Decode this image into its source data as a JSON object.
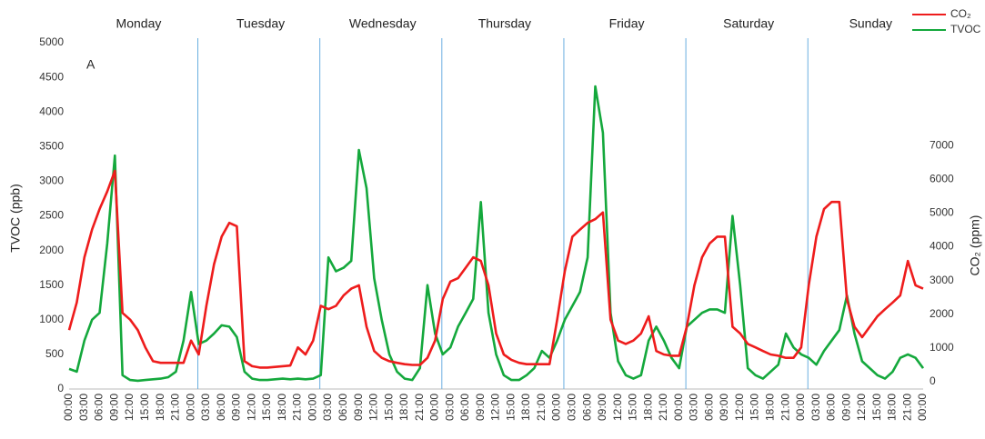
{
  "chart_data": {
    "type": "line",
    "annotation": "A",
    "days": [
      "Monday",
      "Tuesday",
      "Wednesday",
      "Thursday",
      "Friday",
      "Saturday",
      "Sunday"
    ],
    "y_label": "TVOC (ppb)",
    "y2_label": "CO₂ (ppm)",
    "categories": [
      "00:00",
      null,
      "03:00",
      null,
      "06:00",
      null,
      "09:00",
      null,
      "12:00",
      null,
      "15:00",
      null,
      "18:00",
      null,
      "21:00",
      null,
      "00:00",
      null,
      "03:00",
      null,
      "06:00",
      null,
      "09:00",
      null,
      "12:00",
      null,
      "15:00",
      null,
      "18:00",
      null,
      "21:00",
      null,
      "00:00",
      null,
      "03:00",
      null,
      "06:00",
      null,
      "09:00",
      null,
      "12:00",
      null,
      "15:00",
      null,
      "18:00",
      null,
      "21:00",
      null,
      "00:00",
      null,
      "03:00",
      null,
      "06:00",
      null,
      "09:00",
      null,
      "12:00",
      null,
      "15:00",
      null,
      "18:00",
      null,
      "21:00",
      null,
      "00:00",
      null,
      "03:00",
      null,
      "06:00",
      null,
      "09:00",
      null,
      "12:00",
      null,
      "15:00",
      null,
      "18:00",
      null,
      "21:00",
      null,
      "00:00",
      null,
      "03:00",
      null,
      "06:00",
      null,
      "09:00",
      null,
      "12:00",
      null,
      "15:00",
      null,
      "18:00",
      null,
      "21:00",
      null,
      "00:00",
      null,
      "03:00",
      null,
      "06:00",
      null,
      "09:00",
      null,
      "12:00",
      null,
      "15:00",
      null,
      "18:00",
      null,
      "21:00",
      null,
      "00:00"
    ],
    "series": [
      {
        "name": "CO₂",
        "color": "#ee1c1c",
        "axis": "y2",
        "values": [
          1530,
          2350,
          3690,
          4510,
          5120,
          5640,
          6250,
          2040,
          1840,
          1530,
          1020,
          610,
          560,
          560,
          560,
          560,
          1220,
          810,
          2250,
          3480,
          4300,
          4710,
          4610,
          610,
          460,
          420,
          420,
          440,
          460,
          480,
          1020,
          810,
          1220,
          2250,
          2150,
          2250,
          2560,
          2760,
          2860,
          1630,
          910,
          710,
          610,
          560,
          520,
          500,
          500,
          710,
          1220,
          2450,
          2970,
          3070,
          3380,
          3690,
          3580,
          2860,
          1430,
          810,
          650,
          560,
          520,
          520,
          520,
          520,
          1840,
          3280,
          4300,
          4510,
          4710,
          4820,
          5020,
          1840,
          1220,
          1120,
          1220,
          1430,
          1940,
          910,
          810,
          770,
          770,
          1630,
          2860,
          3690,
          4100,
          4300,
          4300,
          1630,
          1430,
          1120,
          1020,
          910,
          810,
          770,
          710,
          710,
          1020,
          2860,
          4300,
          5120,
          5330,
          5330,
          2450,
          1630,
          1320,
          1630,
          1940,
          2150,
          2350,
          2560,
          3580,
          2860,
          2760
        ]
      },
      {
        "name": "TVOC",
        "color": "#14a83c",
        "values": [
          290,
          250,
          700,
          1000,
          1100,
          2100,
          3370,
          200,
          130,
          120,
          130,
          140,
          150,
          170,
          250,
          700,
          1400,
          650,
          700,
          800,
          920,
          900,
          750,
          250,
          150,
          130,
          130,
          140,
          150,
          140,
          150,
          140,
          150,
          200,
          1900,
          1700,
          1750,
          1850,
          3450,
          2900,
          1600,
          1000,
          500,
          250,
          150,
          130,
          300,
          1500,
          800,
          500,
          600,
          900,
          1100,
          1300,
          2700,
          1100,
          500,
          200,
          130,
          130,
          200,
          300,
          550,
          450,
          700,
          1000,
          1200,
          1400,
          1900,
          4370,
          3700,
          1100,
          400,
          200,
          150,
          200,
          700,
          900,
          700,
          450,
          300,
          900,
          1000,
          1100,
          1150,
          1150,
          1100,
          2500,
          1500,
          300,
          200,
          150,
          250,
          350,
          800,
          600,
          500,
          450,
          350,
          550,
          700,
          850,
          1350,
          800,
          400,
          300,
          200,
          150,
          250,
          450,
          500,
          450,
          300
        ]
      }
    ],
    "ylim": [
      0,
      5000
    ],
    "yticks": [
      0,
      500,
      1000,
      1500,
      2000,
      2500,
      3000,
      3500,
      4000,
      4500,
      5000
    ],
    "y2lim": [
      -215,
      10050
    ],
    "y2ticks": [
      0,
      1000,
      2000,
      3000,
      4000,
      5000,
      6000,
      7000
    ],
    "grid": false
  }
}
